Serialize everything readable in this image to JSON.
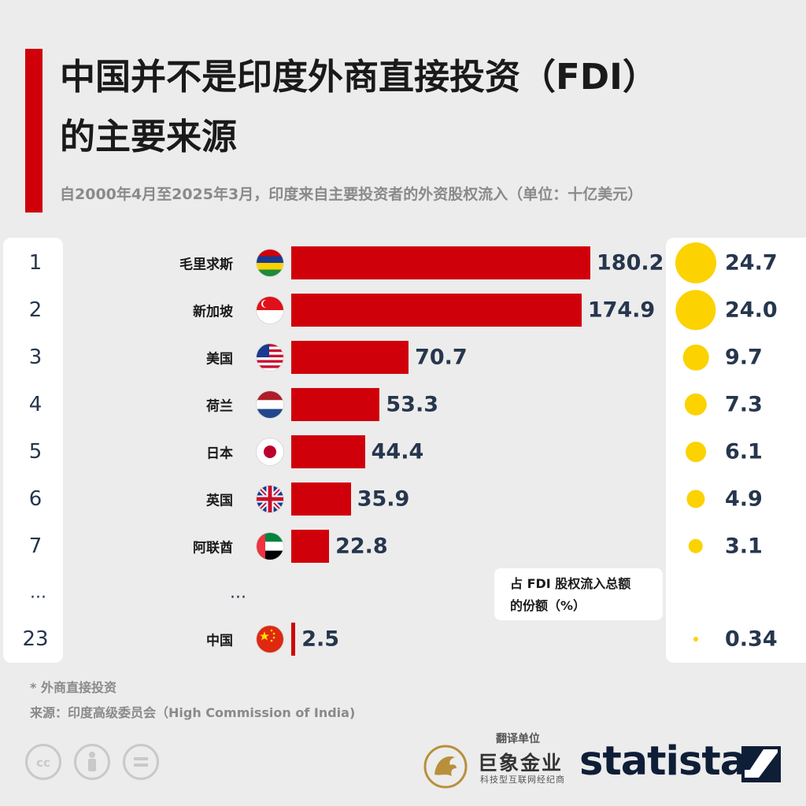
{
  "header": {
    "title_line1": "中国并不是印度外商直接投资（FDI）",
    "title_line2": "的主要来源",
    "subtitle": "自2000年4月至2025年3月，印度来自主要投资者的外资股权流入（单位：十亿美元）",
    "accent_color": "#d0000a"
  },
  "chart_data": {
    "type": "bar",
    "orientation": "horizontal",
    "categories": [
      "毛里求斯",
      "新加坡",
      "美国",
      "荷兰",
      "日本",
      "英国",
      "阿联酋",
      "中国"
    ],
    "ranks": [
      "1",
      "2",
      "3",
      "4",
      "5",
      "6",
      "7",
      "23"
    ],
    "values": [
      180.2,
      174.9,
      70.7,
      53.3,
      44.4,
      35.9,
      22.8,
      2.5
    ],
    "value_labels": [
      "180.2",
      "174.9",
      "70.7",
      "53.3",
      "44.4",
      "35.9",
      "22.8",
      "2.5"
    ],
    "share_values": [
      24.7,
      24.0,
      9.7,
      7.3,
      6.1,
      4.9,
      3.1,
      0.34
    ],
    "share_labels": [
      "24.7",
      "24.0",
      "9.7",
      "7.3",
      "6.1",
      "4.9",
      "3.1",
      "0.34"
    ],
    "share_legend": [
      "占 FDI 股权流入总额",
      "的份额（%）"
    ],
    "bar_color": "#d0000a",
    "dot_color": "#fcd200",
    "gap_marker": "..."
  },
  "flags": [
    "mauritius-flag",
    "singapore-flag",
    "usa-flag",
    "netherlands-flag",
    "japan-flag",
    "uk-flag",
    "uae-flag",
    "china-flag"
  ],
  "footer": {
    "footnote": "* 外商直接投资",
    "source": "来源：印度高级委员会（High Commission of India)",
    "translator_label": "翻译单位",
    "translator_name": "巨象金业",
    "translator_tagline": "科技型互联网经纪商",
    "brand": "statista"
  }
}
